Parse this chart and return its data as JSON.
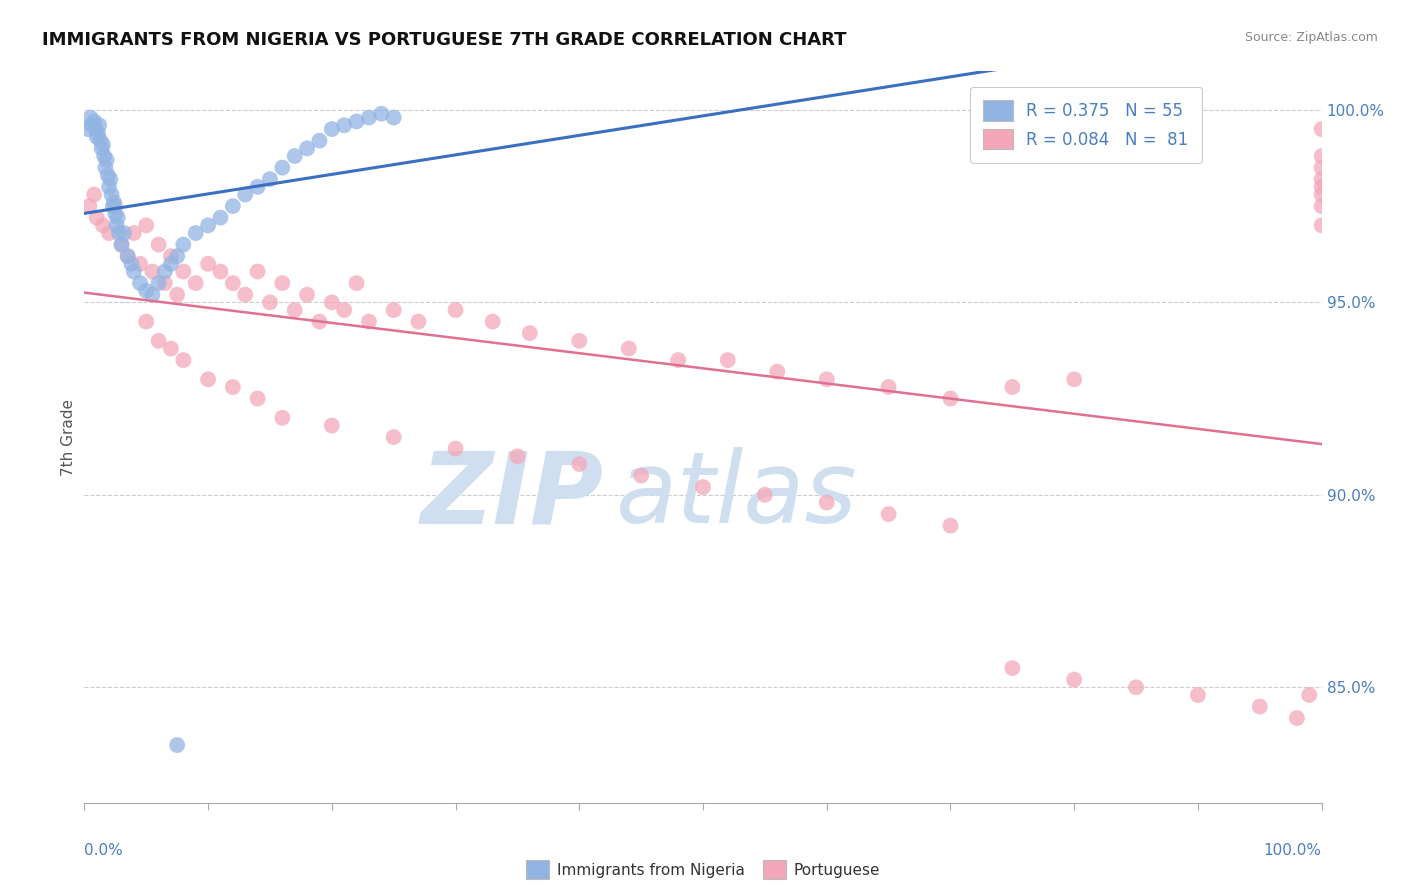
{
  "title": "IMMIGRANTS FROM NIGERIA VS PORTUGUESE 7TH GRADE CORRELATION CHART",
  "source": "Source: ZipAtlas.com",
  "ylabel": "7th Grade",
  "right_yticks": [
    100.0,
    95.0,
    90.0,
    85.0
  ],
  "legend_blue_label": "Immigrants from Nigeria",
  "legend_pink_label": "Portuguese",
  "legend_blue_R": "R = 0.375",
  "legend_blue_N": "N = 55",
  "legend_pink_R": "R = 0.084",
  "legend_pink_N": "N =  81",
  "blue_color": "#92b4e3",
  "pink_color": "#f4a7b9",
  "line_blue_color": "#3a6fc1",
  "line_pink_color": "#e07090",
  "watermark_zip": "ZIP",
  "watermark_atlas": "atlas",
  "watermark_color_zip": "#c8d8ee",
  "watermark_color_atlas": "#c8d8ee",
  "blue_points_x": [
    0.3,
    0.5,
    0.6,
    0.8,
    0.9,
    1.0,
    1.1,
    1.2,
    1.3,
    1.4,
    1.5,
    1.6,
    1.7,
    1.8,
    1.9,
    2.0,
    2.1,
    2.2,
    2.3,
    2.4,
    2.5,
    2.6,
    2.7,
    2.8,
    3.0,
    3.2,
    3.5,
    3.8,
    4.0,
    4.5,
    5.0,
    5.5,
    6.0,
    6.5,
    7.0,
    7.5,
    8.0,
    9.0,
    10.0,
    11.0,
    12.0,
    13.0,
    14.0,
    15.0,
    16.0,
    17.0,
    18.0,
    19.0,
    20.0,
    21.0,
    22.0,
    23.0,
    24.0,
    25.0,
    7.5
  ],
  "blue_points_y": [
    99.5,
    99.8,
    99.6,
    99.7,
    99.5,
    99.3,
    99.4,
    99.6,
    99.2,
    99.0,
    99.1,
    98.8,
    98.5,
    98.7,
    98.3,
    98.0,
    98.2,
    97.8,
    97.5,
    97.6,
    97.3,
    97.0,
    97.2,
    96.8,
    96.5,
    96.8,
    96.2,
    96.0,
    95.8,
    95.5,
    95.3,
    95.2,
    95.5,
    95.8,
    96.0,
    96.2,
    96.5,
    96.8,
    97.0,
    97.2,
    97.5,
    97.8,
    98.0,
    98.2,
    98.5,
    98.8,
    99.0,
    99.2,
    99.5,
    99.6,
    99.7,
    99.8,
    99.9,
    99.8,
    83.5
  ],
  "pink_points_x": [
    0.4,
    0.8,
    1.0,
    1.5,
    2.0,
    2.5,
    3.0,
    3.5,
    4.0,
    4.5,
    5.0,
    5.5,
    6.0,
    6.5,
    7.0,
    7.5,
    8.0,
    9.0,
    10.0,
    11.0,
    12.0,
    13.0,
    14.0,
    15.0,
    16.0,
    17.0,
    18.0,
    19.0,
    20.0,
    21.0,
    22.0,
    23.0,
    25.0,
    27.0,
    30.0,
    33.0,
    36.0,
    40.0,
    44.0,
    48.0,
    52.0,
    56.0,
    60.0,
    65.0,
    70.0,
    75.0,
    80.0,
    5.0,
    6.0,
    7.0,
    8.0,
    10.0,
    12.0,
    14.0,
    16.0,
    20.0,
    25.0,
    30.0,
    35.0,
    40.0,
    45.0,
    50.0,
    55.0,
    60.0,
    65.0,
    70.0,
    75.0,
    80.0,
    85.0,
    90.0,
    95.0,
    98.0,
    99.0,
    100.0,
    100.0,
    100.0,
    100.0,
    100.0,
    100.0,
    100.0,
    100.0
  ],
  "pink_points_y": [
    97.5,
    97.8,
    97.2,
    97.0,
    96.8,
    97.5,
    96.5,
    96.2,
    96.8,
    96.0,
    97.0,
    95.8,
    96.5,
    95.5,
    96.2,
    95.2,
    95.8,
    95.5,
    96.0,
    95.8,
    95.5,
    95.2,
    95.8,
    95.0,
    95.5,
    94.8,
    95.2,
    94.5,
    95.0,
    94.8,
    95.5,
    94.5,
    94.8,
    94.5,
    94.8,
    94.5,
    94.2,
    94.0,
    93.8,
    93.5,
    93.5,
    93.2,
    93.0,
    92.8,
    92.5,
    92.8,
    93.0,
    94.5,
    94.0,
    93.8,
    93.5,
    93.0,
    92.8,
    92.5,
    92.0,
    91.8,
    91.5,
    91.2,
    91.0,
    90.8,
    90.5,
    90.2,
    90.0,
    89.8,
    89.5,
    89.2,
    85.5,
    85.2,
    85.0,
    84.8,
    84.5,
    84.2,
    84.8,
    99.5,
    98.8,
    97.5,
    98.2,
    97.8,
    98.5,
    97.0,
    98.0
  ],
  "xmin": 0.0,
  "xmax": 100.0,
  "ymin": 82.0,
  "ymax": 101.0
}
